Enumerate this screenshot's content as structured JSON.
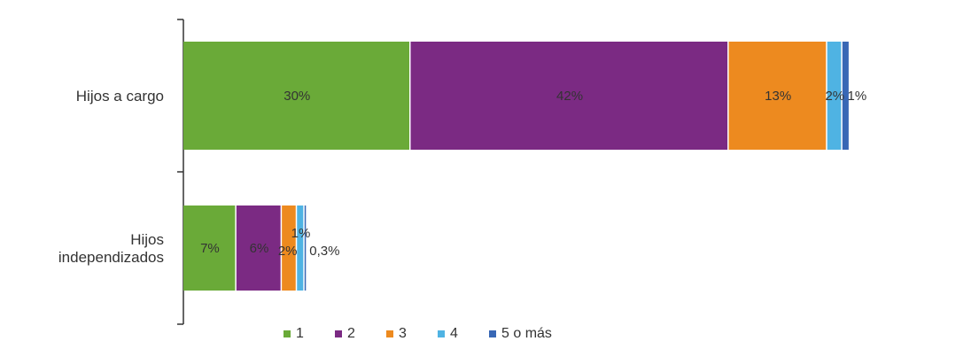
{
  "chart_data": {
    "type": "bar",
    "orientation": "horizontal",
    "stacked": true,
    "categories": [
      "Hijos a cargo",
      "Hijos independizados"
    ],
    "series": [
      {
        "name": "1",
        "values": [
          30,
          7
        ],
        "labels": [
          "30%",
          "7%"
        ],
        "color": "#6aaa38"
      },
      {
        "name": "2",
        "values": [
          42,
          6
        ],
        "labels": [
          "42%",
          "6%"
        ],
        "color": "#7b2a83"
      },
      {
        "name": "3",
        "values": [
          13,
          2
        ],
        "labels": [
          "13%",
          "2%"
        ],
        "color": "#ed8a1f"
      },
      {
        "name": "4",
        "values": [
          2,
          1
        ],
        "labels": [
          "2%",
          "1%"
        ],
        "color": "#4fb3e3"
      },
      {
        "name": "5 o más",
        "values": [
          1,
          0.3
        ],
        "labels": [
          "1%",
          "0,3%"
        ],
        "color": "#3867b5"
      }
    ],
    "xlim": [
      0,
      100
    ],
    "grid": false,
    "legend_position": "bottom"
  }
}
